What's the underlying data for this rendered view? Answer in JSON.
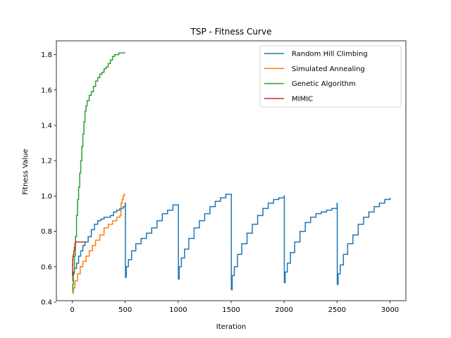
{
  "chart_data": {
    "type": "line",
    "title": "TSP - Fitness Curve",
    "xlabel": "Iteration",
    "ylabel": "Fitness Value",
    "xlim": [
      -150,
      3150
    ],
    "ylim": [
      0.408,
      1.878
    ],
    "xticks": [
      0,
      500,
      1000,
      1500,
      2000,
      2500,
      3000
    ],
    "yticks": [
      0.4,
      0.6,
      0.8,
      1.0,
      1.2,
      1.4,
      1.6,
      1.8
    ],
    "grid": false,
    "legend_position": "top-right",
    "series": [
      {
        "name": "Random Hill Climbing",
        "color": "#1f77b4",
        "x": [
          0,
          5,
          10,
          20,
          40,
          60,
          80,
          100,
          120,
          150,
          180,
          210,
          240,
          270,
          300,
          330,
          360,
          390,
          420,
          450,
          480,
          500,
          502,
          510,
          530,
          560,
          600,
          650,
          700,
          750,
          800,
          850,
          900,
          950,
          1000,
          1002,
          1010,
          1030,
          1060,
          1100,
          1150,
          1200,
          1250,
          1300,
          1350,
          1400,
          1450,
          1500,
          1502,
          1510,
          1530,
          1560,
          1600,
          1650,
          1700,
          1750,
          1800,
          1850,
          1900,
          1950,
          2000,
          2002,
          2010,
          2030,
          2060,
          2100,
          2150,
          2200,
          2250,
          2300,
          2350,
          2400,
          2450,
          2500,
          2502,
          2510,
          2530,
          2560,
          2600,
          2650,
          2700,
          2750,
          2800,
          2850,
          2900,
          2950,
          3000
        ],
        "y": [
          0.52,
          0.55,
          0.57,
          0.59,
          0.62,
          0.66,
          0.69,
          0.72,
          0.74,
          0.77,
          0.81,
          0.84,
          0.86,
          0.87,
          0.88,
          0.88,
          0.89,
          0.91,
          0.92,
          0.93,
          0.94,
          0.96,
          0.54,
          0.6,
          0.64,
          0.69,
          0.73,
          0.76,
          0.79,
          0.82,
          0.86,
          0.9,
          0.92,
          0.95,
          0.95,
          0.53,
          0.6,
          0.65,
          0.7,
          0.76,
          0.82,
          0.86,
          0.9,
          0.94,
          0.97,
          0.99,
          1.01,
          1.01,
          0.47,
          0.55,
          0.6,
          0.67,
          0.73,
          0.79,
          0.84,
          0.89,
          0.93,
          0.96,
          0.98,
          0.99,
          1.0,
          0.51,
          0.57,
          0.62,
          0.68,
          0.74,
          0.8,
          0.85,
          0.88,
          0.9,
          0.91,
          0.92,
          0.93,
          0.96,
          0.5,
          0.56,
          0.61,
          0.67,
          0.73,
          0.78,
          0.84,
          0.88,
          0.91,
          0.94,
          0.96,
          0.98,
          0.99
        ]
      },
      {
        "name": "Simulated Annealing",
        "color": "#ff7f0e",
        "x": [
          0,
          10,
          25,
          50,
          75,
          100,
          130,
          160,
          190,
          220,
          260,
          300,
          340,
          380,
          420,
          450,
          460,
          470,
          480,
          490,
          500
        ],
        "y": [
          0.45,
          0.48,
          0.52,
          0.56,
          0.6,
          0.63,
          0.66,
          0.69,
          0.72,
          0.75,
          0.78,
          0.82,
          0.84,
          0.86,
          0.88,
          0.89,
          0.96,
          0.98,
          1.0,
          1.01,
          1.01
        ]
      },
      {
        "name": "Genetic Algorithm",
        "color": "#2ca02c",
        "x": [
          0,
          5,
          10,
          20,
          30,
          40,
          50,
          60,
          70,
          80,
          90,
          100,
          110,
          120,
          130,
          140,
          160,
          180,
          200,
          220,
          240,
          260,
          280,
          300,
          320,
          340,
          360,
          380,
          400,
          420,
          440,
          460,
          480,
          500
        ],
        "y": [
          0.46,
          0.5,
          0.56,
          0.66,
          0.77,
          0.89,
          0.98,
          1.05,
          1.13,
          1.2,
          1.28,
          1.35,
          1.42,
          1.48,
          1.51,
          1.54,
          1.57,
          1.59,
          1.62,
          1.65,
          1.67,
          1.69,
          1.7,
          1.72,
          1.73,
          1.75,
          1.77,
          1.79,
          1.8,
          1.8,
          1.81,
          1.81,
          1.81,
          1.81
        ]
      },
      {
        "name": "MIMIC",
        "color": "#d62728",
        "x": [
          0,
          2,
          4,
          6,
          10,
          15,
          20,
          25,
          30,
          40,
          60,
          80,
          100,
          110,
          120
        ],
        "y": [
          0.55,
          0.61,
          0.64,
          0.66,
          0.67,
          0.69,
          0.71,
          0.73,
          0.74,
          0.74,
          0.74,
          0.74,
          0.74,
          0.74,
          0.74
        ]
      }
    ]
  }
}
